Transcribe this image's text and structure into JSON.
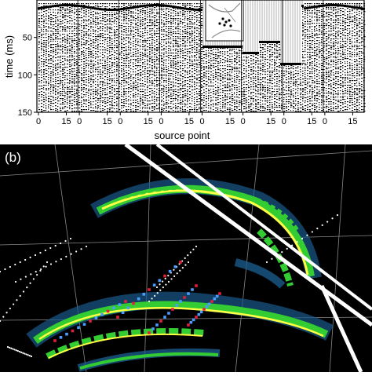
{
  "panel_a": {
    "y_axis": {
      "label": "time (ms)",
      "ticks": [
        "50",
        "100",
        "150"
      ],
      "range": [
        0,
        150
      ]
    },
    "x_axis": {
      "label": "source point",
      "groups": [
        [
          "0",
          "15"
        ],
        [
          "0",
          "15"
        ],
        [
          "0",
          "15"
        ],
        [
          "0",
          "15"
        ],
        [
          "0",
          "15"
        ],
        [
          "0",
          "15"
        ],
        [
          "0",
          "15"
        ],
        [
          "0",
          "15"
        ]
      ]
    },
    "trace_color": "#000000"
  },
  "panel_b": {
    "label": "(b)",
    "background": "#000000",
    "colors": {
      "amplitude_high": "#ffff44",
      "amplitude_mid": "#33cc33",
      "amplitude_low": "#1a5a8a",
      "receiver_points": "#ffffff",
      "picks_blue": "#4a9cff",
      "picks_red": "#e0203a",
      "grid": "#888888",
      "fault_plane": "#ffffff"
    }
  }
}
